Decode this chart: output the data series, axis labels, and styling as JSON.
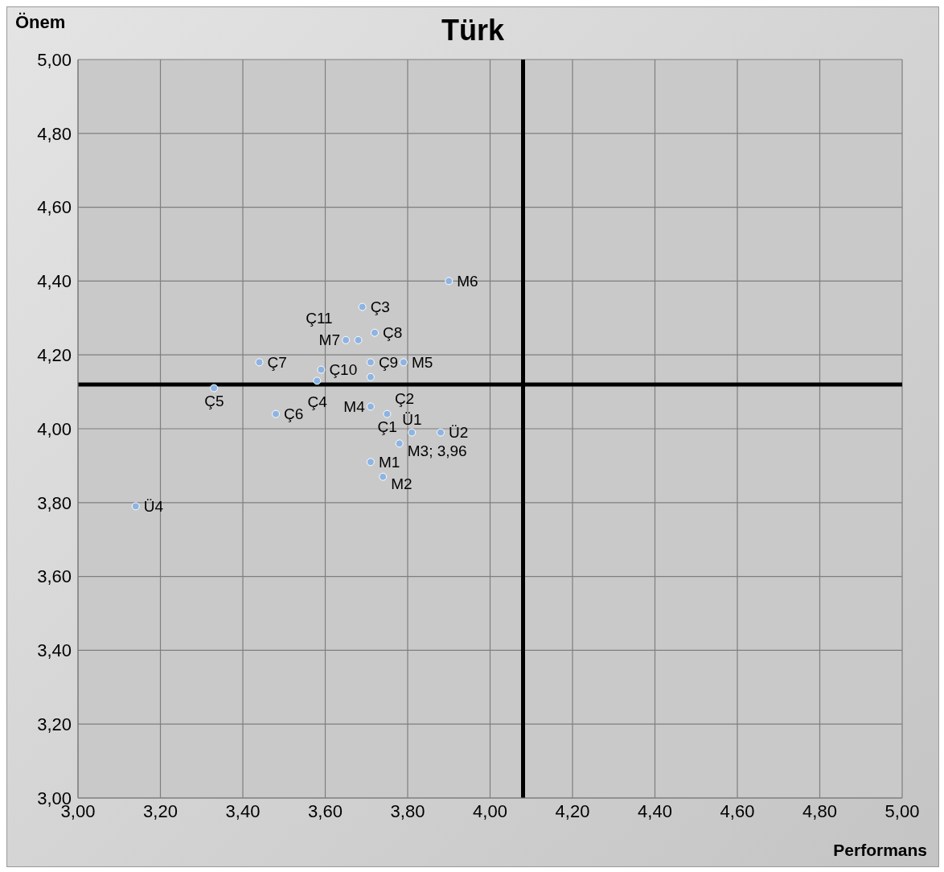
{
  "chart_data": {
    "type": "scatter",
    "title": "Türk",
    "xlabel": "Performans",
    "ylabel": "Önem",
    "x": [
      3.9,
      3.69,
      3.72,
      3.65,
      3.68,
      3.71,
      3.79,
      3.59,
      3.58,
      3.71,
      3.44,
      3.33,
      3.48,
      3.71,
      3.75,
      3.81,
      3.88,
      3.78,
      3.71,
      3.74,
      3.14
    ],
    "series": [
      {
        "color": "#8db4e2",
        "values": [
          4.4,
          4.33,
          4.26,
          4.24,
          4.24,
          4.18,
          4.18,
          4.16,
          4.13,
          4.14,
          4.18,
          4.11,
          4.04,
          4.06,
          4.04,
          3.99,
          3.99,
          3.96,
          3.91,
          3.87,
          3.79
        ]
      }
    ],
    "annotations": [
      {
        "text": "M6",
        "x": 3.9,
        "y": 4.4
      },
      {
        "text": "Ç3",
        "x": 3.69,
        "y": 4.33
      },
      {
        "text": "Ç8",
        "x": 3.72,
        "y": 4.26
      },
      {
        "text": "M7",
        "x": 3.65,
        "y": 4.24
      },
      {
        "text": "Ç11",
        "x": 3.68,
        "y": 4.24
      },
      {
        "text": "Ç9",
        "x": 3.71,
        "y": 4.18
      },
      {
        "text": "M5",
        "x": 3.79,
        "y": 4.18
      },
      {
        "text": "Ç10",
        "x": 3.59,
        "y": 4.16
      },
      {
        "text": "Ç4",
        "x": 3.58,
        "y": 4.13
      },
      {
        "text": "Ç2",
        "x": 3.71,
        "y": 4.14
      },
      {
        "text": "Ç7",
        "x": 3.44,
        "y": 4.18
      },
      {
        "text": "Ç5",
        "x": 3.33,
        "y": 4.11
      },
      {
        "text": "Ç6",
        "x": 3.48,
        "y": 4.04
      },
      {
        "text": "M4",
        "x": 3.71,
        "y": 4.06
      },
      {
        "text": "Ç1",
        "x": 3.75,
        "y": 4.04
      },
      {
        "text": "Ü1",
        "x": 3.81,
        "y": 3.99
      },
      {
        "text": "Ü2",
        "x": 3.88,
        "y": 3.99
      },
      {
        "text": "M3; 3,96",
        "x": 3.78,
        "y": 3.96
      },
      {
        "text": "M1",
        "x": 3.71,
        "y": 3.91
      },
      {
        "text": "M2",
        "x": 3.74,
        "y": 3.87
      },
      {
        "text": "Ü4",
        "x": 3.14,
        "y": 3.79
      }
    ],
    "xlim": [
      3,
      5
    ],
    "ylim": [
      3,
      5
    ],
    "xticks": [
      {
        "value": 3,
        "label": "3,00"
      },
      {
        "value": 3.2,
        "label": "3,20"
      },
      {
        "value": 3.4,
        "label": "3,40"
      },
      {
        "value": 3.6,
        "label": "3,60"
      },
      {
        "value": 3.8,
        "label": "3,80"
      },
      {
        "value": 4,
        "label": "4,00"
      },
      {
        "value": 4.2,
        "label": "4,20"
      },
      {
        "value": 4.4,
        "label": "4,40"
      },
      {
        "value": 4.6,
        "label": "4,60"
      },
      {
        "value": 4.8,
        "label": "4,80"
      },
      {
        "value": 5,
        "label": "5,00"
      }
    ],
    "yticks": [
      {
        "value": 3,
        "label": "3,00"
      },
      {
        "value": 3.2,
        "label": "3,20"
      },
      {
        "value": 3.4,
        "label": "3,40"
      },
      {
        "value": 3.6,
        "label": "3,60"
      },
      {
        "value": 3.8,
        "label": "3,80"
      },
      {
        "value": 4,
        "label": "4,00"
      },
      {
        "value": 4.2,
        "label": "4,20"
      },
      {
        "value": 4.4,
        "label": "4,40"
      },
      {
        "value": 4.6,
        "label": "4,60"
      },
      {
        "value": 4.8,
        "label": "4,80"
      },
      {
        "value": 5,
        "label": "5,00"
      }
    ],
    "ref_lines": [
      {
        "axis": "x",
        "value": 4.08,
        "color": "#000000"
      },
      {
        "axis": "y",
        "value": 4.12,
        "color": "#000000"
      }
    ],
    "grid": true,
    "marker": "circle"
  }
}
